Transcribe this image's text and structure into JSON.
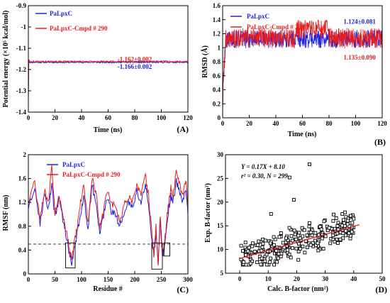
{
  "colors": {
    "blue": "#2020e0",
    "red": "#e81c1c",
    "black": "#000000"
  },
  "chart_data": [
    {
      "id": "A",
      "type": "line",
      "panel_label": "(A)",
      "ylabel": "Potential energy (×10⁵ kcal/mol)",
      "xlabel": "Time (ns)",
      "xlim": [
        0,
        120
      ],
      "ylim": [
        -1.4,
        -0.9
      ],
      "xticks": [
        0,
        20,
        40,
        60,
        80,
        100,
        120
      ],
      "yticks": [
        -1.4,
        -1.3,
        -1.2,
        -1.1,
        -1.0,
        -0.9
      ],
      "legend": [
        "PaLpxC",
        "PaLpxC-Cmpd # 290"
      ],
      "series": [
        {
          "name": "PaLpxC",
          "color": "#2020e0",
          "mean": -1.166,
          "sd": 0.002,
          "start": -1.14
        },
        {
          "name": "PaLpxC-Cmpd # 290",
          "color": "#e81c1c",
          "mean": -1.162,
          "sd": 0.002,
          "start": -1.14
        }
      ],
      "annotations": [
        {
          "text": "-1.162±0.002",
          "color": "#e81c1c",
          "x": 80,
          "y": -1.151
        },
        {
          "text": "-1.166±0.002",
          "color": "#2020e0",
          "x": 80,
          "y": -1.186
        }
      ]
    },
    {
      "id": "B",
      "type": "line",
      "panel_label": "(B)",
      "ylabel": "RMSD (Å)",
      "xlabel": "Time (ns)",
      "xlim": [
        0,
        120
      ],
      "ylim": [
        0.0,
        1.6
      ],
      "xticks": [
        0,
        20,
        40,
        60,
        80,
        100,
        120
      ],
      "yticks": [
        0.0,
        0.2,
        0.4,
        0.6,
        0.8,
        1.0,
        1.2,
        1.4,
        1.6
      ],
      "legend": [
        "PaLpxC",
        "PaLpxC-Cmpd # 290"
      ],
      "series": [
        {
          "name": "PaLpxC",
          "color": "#2020e0",
          "mean": 1.124,
          "sd": 0.081
        },
        {
          "name": "PaLpxC-Cmpd # 290",
          "color": "#e81c1c",
          "mean": 1.135,
          "sd": 0.09
        }
      ],
      "annotations": [
        {
          "text": "1.124±0.081",
          "color": "#2020e0",
          "x": 103,
          "y": 1.37
        },
        {
          "text": "1.135±0.090",
          "color": "#e81c1c",
          "x": 103,
          "y": 0.86
        }
      ]
    },
    {
      "id": "C",
      "type": "line",
      "panel_label": "(C)",
      "ylabel": "RMSF (nm)",
      "xlabel": "Residue #",
      "xlim": [
        0,
        300
      ],
      "ylim": [
        0.0,
        2.0
      ],
      "xticks": [
        0,
        50,
        100,
        150,
        200,
        250,
        300
      ],
      "yticks": [
        0.0,
        0.4,
        0.8,
        1.2,
        1.6,
        2.0
      ],
      "legend": [
        "PaLpxC",
        "PaLpxC-Cmpd # 290"
      ],
      "threshold": 0.5,
      "x": [
        0,
        12,
        22,
        30,
        38,
        44,
        50,
        58,
        66,
        72,
        78,
        82,
        86,
        92,
        98,
        104,
        112,
        120,
        128,
        134,
        140,
        148,
        156,
        164,
        172,
        180,
        188,
        196,
        204,
        212,
        220,
        226,
        232,
        236,
        240,
        244,
        248,
        252,
        256,
        260,
        264,
        268,
        272,
        278,
        284,
        290,
        296,
        300
      ],
      "series": [
        {
          "name": "PaLpxC",
          "color": "#2020e0",
          "values": [
            1.1,
            1.45,
            0.85,
            1.3,
            1.1,
            1.5,
            0.95,
            1.25,
            0.85,
            0.6,
            0.3,
            0.18,
            0.4,
            0.7,
            1.0,
            1.3,
            0.75,
            1.5,
            1.1,
            0.7,
            0.9,
            1.3,
            1.05,
            1.0,
            0.8,
            1.0,
            1.2,
            1.1,
            1.4,
            1.2,
            1.5,
            1.2,
            0.6,
            0.3,
            0.7,
            0.2,
            0.9,
            0.3,
            0.45,
            0.8,
            1.1,
            1.3,
            1.2,
            1.55,
            1.4,
            1.2,
            1.45,
            1.0
          ]
        },
        {
          "name": "PaLpxC-Cmpd # 290",
          "color": "#e81c1c",
          "values": [
            1.2,
            1.55,
            0.9,
            1.4,
            1.2,
            1.8,
            1.0,
            1.3,
            0.9,
            0.7,
            0.35,
            0.25,
            0.5,
            0.8,
            1.2,
            1.5,
            0.85,
            1.6,
            1.3,
            0.8,
            1.0,
            1.4,
            1.2,
            1.1,
            0.9,
            1.15,
            1.3,
            1.2,
            1.5,
            1.3,
            1.65,
            1.3,
            0.7,
            0.35,
            0.8,
            0.15,
            1.0,
            0.35,
            0.5,
            0.9,
            1.2,
            1.45,
            1.3,
            1.7,
            1.55,
            1.3,
            1.6,
            1.1
          ]
        }
      ],
      "boxes": [
        {
          "x0": 70,
          "x1": 88,
          "y0": 0.1,
          "y1": 0.52
        },
        {
          "x0": 232,
          "x1": 252,
          "y0": 0.08,
          "y1": 0.52
        },
        {
          "x0": 255,
          "x1": 266,
          "y0": 0.3,
          "y1": 0.52
        }
      ]
    },
    {
      "id": "D",
      "type": "scatter",
      "panel_label": "(D)",
      "ylabel": "Exp. B-factor (nm²)",
      "xlabel": "Calc. B-factor (nm²)",
      "xlim": [
        -5,
        50
      ],
      "ylim": [
        5,
        30
      ],
      "xticks": [
        0,
        10,
        20,
        30,
        40,
        50
      ],
      "yticks": [
        5,
        10,
        15,
        20,
        25,
        30
      ],
      "fit": {
        "slope": 0.17,
        "intercept": 8.1,
        "x0": 0,
        "x1": 42,
        "color": "#e81c1c"
      },
      "stats_lines": [
        "Y = 0.17X + 8.10",
        "r² = 0.30, N = 299"
      ],
      "n": 299,
      "outliers": [
        [
          24.5,
          28
        ],
        [
          17.5,
          25.2
        ],
        [
          19,
          20.5
        ],
        [
          11,
          17.5
        ],
        [
          36,
          17.5
        ],
        [
          40,
          16.5
        ]
      ]
    }
  ]
}
